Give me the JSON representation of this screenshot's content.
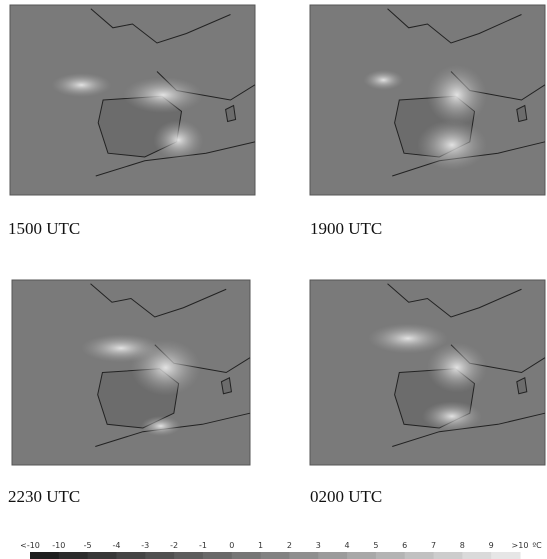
{
  "panels": [
    {
      "caption": "1500 UTC"
    },
    {
      "caption": "1900 UTC"
    },
    {
      "caption": "2230 UTC"
    },
    {
      "caption": "0200 UTC"
    }
  ],
  "colorbar": {
    "labels": [
      "<-10",
      "-10",
      "-5",
      "-4",
      "-3",
      "-2",
      "-1",
      "0",
      "1",
      "2",
      "3",
      "4",
      "5",
      "6",
      "7",
      "8",
      "9",
      ">10"
    ],
    "unit": "ºC"
  }
}
